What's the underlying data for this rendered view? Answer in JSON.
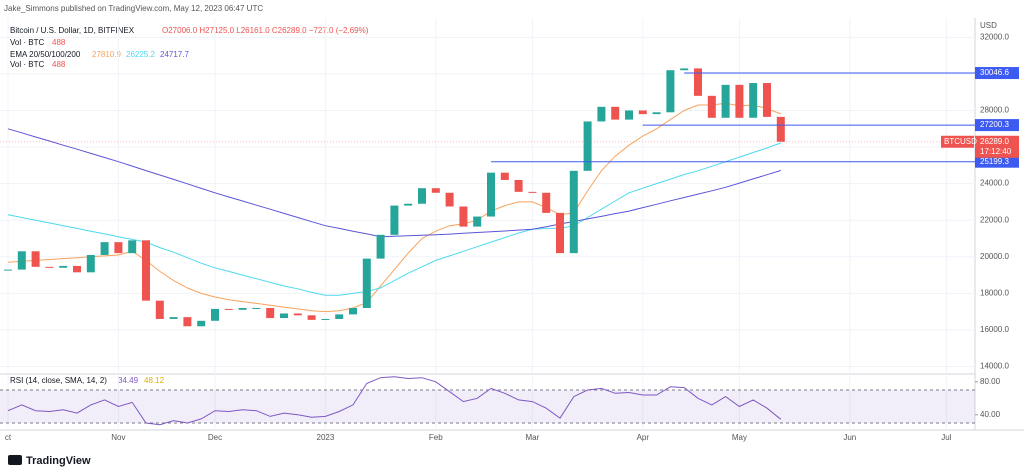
{
  "chart_data": [
    {
      "type": "candlestick",
      "author_note": "Jake_Simmons published on TradingView.com, May 12, 2023 06:47 UTC",
      "title": "Bitcoin / U.S. Dollar, 1D, BITFINEX",
      "ohlc": "O27006.0 H27125.0 L26161.0 C26289.0 −727.0 (−2.69%)",
      "volume_label": "Vol · BTC",
      "volume_value": "488",
      "ema_label": "EMA 20/50/100/200",
      "currency": "USD",
      "symbol": "BTCUSD",
      "countdown": "17:12:40",
      "last_price": {
        "value": 26289,
        "label": "26289.0"
      },
      "color": "#26a69a",
      "down_color": "#ef5350",
      "categories": [
        "ct",
        null,
        null,
        null,
        null,
        null,
        null,
        null,
        "Nov",
        null,
        null,
        null,
        null,
        null,
        null,
        "Dec",
        null,
        null,
        null,
        null,
        null,
        null,
        null,
        "2023",
        null,
        null,
        null,
        null,
        null,
        null,
        null,
        "Feb",
        null,
        null,
        null,
        null,
        null,
        null,
        "Mar",
        null,
        null,
        null,
        null,
        null,
        null,
        null,
        "Apr",
        null,
        null,
        null,
        null,
        null,
        null,
        "May",
        null,
        null,
        null,
        null,
        null,
        null,
        null,
        "Jun",
        null,
        null,
        null,
        null,
        null,
        null,
        "Jul",
        null,
        null
      ],
      "values": [
        19300,
        20300,
        19450,
        19400,
        19500,
        19150,
        20100,
        20800,
        20200,
        20900,
        17600,
        16600,
        16700,
        16200,
        16500,
        17150,
        17100,
        17200,
        17200,
        16650,
        16900,
        16800,
        16550,
        16600,
        16850,
        17200,
        19900,
        21200,
        22800,
        22900,
        23750,
        23500,
        22750,
        21650,
        22200,
        24600,
        24200,
        23550,
        23500,
        22400,
        20200,
        24700,
        27400,
        28200,
        27500,
        28000,
        27800,
        27900,
        30200,
        30300,
        28800,
        27600,
        29400,
        27600,
        29500,
        27650,
        26289,
        null,
        null,
        null,
        null,
        null,
        null,
        null,
        null,
        null,
        null,
        null,
        null,
        null,
        null
      ],
      "series": [
        {
          "name": "27810.9",
          "color": "#f7a35c",
          "values": [
            19700,
            19750,
            19800,
            19850,
            19900,
            19950,
            20000,
            20050,
            20100,
            20300,
            19800,
            19200,
            18700,
            18300,
            18000,
            17800,
            17650,
            17550,
            17450,
            17350,
            17250,
            17150,
            17050,
            17000,
            17050,
            17200,
            17500,
            18400,
            19300,
            20200,
            21000,
            21400,
            21700,
            21800,
            22000,
            22500,
            22800,
            23000,
            23000,
            22700,
            22300,
            22400,
            23600,
            24700,
            25500,
            26100,
            26600,
            27000,
            27500,
            28000,
            28300,
            28300,
            28400,
            28250,
            28300,
            28100,
            27810.9,
            null,
            null,
            null,
            null,
            null,
            null,
            null,
            null,
            null,
            null,
            null,
            null,
            null,
            null
          ]
        },
        {
          "name": "26225.2",
          "color": "#4dd9f0",
          "values": [
            22300,
            22150,
            22000,
            21850,
            21700,
            21550,
            21400,
            21250,
            21100,
            20950,
            20800,
            20500,
            20250,
            19950,
            19650,
            19400,
            19200,
            19000,
            18800,
            18600,
            18400,
            18250,
            18050,
            17900,
            17900,
            18000,
            18100,
            18300,
            18700,
            19100,
            19450,
            19800,
            20050,
            20300,
            20550,
            20800,
            21050,
            21300,
            21500,
            21550,
            21550,
            21700,
            22150,
            22600,
            23050,
            23500,
            23750,
            24000,
            24250,
            24500,
            24700,
            24950,
            25200,
            25450,
            25700,
            25950,
            26225.2,
            null,
            null,
            null,
            null,
            null,
            null,
            null,
            null,
            null,
            null,
            null,
            null,
            null,
            null
          ]
        },
        {
          "name": "24717.7",
          "color": "#5b55d6",
          "values": [
            27000,
            26780,
            26550,
            26330,
            26100,
            25880,
            25650,
            25430,
            25200,
            24960,
            24710,
            24470,
            24230,
            23990,
            23740,
            23500,
            23270,
            23050,
            22820,
            22600,
            22370,
            22150,
            21920,
            21700,
            21550,
            21400,
            21250,
            21100,
            21120,
            21150,
            21180,
            21200,
            21240,
            21290,
            21330,
            21370,
            21410,
            21460,
            21500,
            21640,
            21790,
            21930,
            22070,
            22210,
            22360,
            22500,
            22690,
            22870,
            23060,
            23240,
            23430,
            23610,
            23800,
            24030,
            24260,
            24490,
            24717.7,
            null,
            null,
            null,
            null,
            null,
            null,
            null,
            null,
            null,
            null,
            null,
            null,
            null,
            null
          ]
        }
      ],
      "levels": [
        {
          "value": 30046.6,
          "label": "30046.6"
        },
        {
          "value": 27200.3,
          "label": "27200.3"
        },
        {
          "value": 25199.3,
          "label": "25199.3"
        }
      ],
      "level_color": "#3d5af1",
      "ylim": [
        13700,
        32400
      ],
      "yticks": [
        {
          "value": 14000,
          "label": "14000.0"
        },
        {
          "value": 16000,
          "label": "16000.0"
        },
        {
          "value": 18000,
          "label": "18000.0"
        },
        {
          "value": 20000,
          "label": "20000.0"
        },
        {
          "value": 22000,
          "label": "22000.0"
        },
        {
          "value": 24000,
          "label": "24000.0"
        },
        {
          "value": 26000,
          "label": "26000.0"
        },
        {
          "value": 28000,
          "label": "28000.0"
        },
        {
          "value": 30000,
          "label": "30000.0"
        },
        {
          "value": 32000,
          "label": "32000.0"
        }
      ],
      "grid": true
    },
    {
      "type": "line",
      "title": "RSI (14, close, SMA, 14, 2)",
      "readings": [
        "34.49",
        "48.12"
      ],
      "color": "#7e57c2",
      "band": [
        30,
        70
      ],
      "values": [
        45,
        52,
        45,
        44,
        46,
        42,
        52,
        58,
        50,
        55,
        30,
        28,
        33,
        30,
        35,
        45,
        44,
        46,
        45,
        38,
        42,
        40,
        37,
        38,
        44,
        52,
        78,
        85,
        86,
        84,
        85,
        80,
        68,
        56,
        60,
        72,
        66,
        58,
        56,
        48,
        36,
        62,
        70,
        72,
        66,
        67,
        64,
        64,
        74,
        73,
        60,
        52,
        62,
        50,
        58,
        48,
        34.49,
        null,
        null,
        null,
        null,
        null,
        null,
        null,
        null,
        null,
        null,
        null,
        null,
        null,
        null
      ],
      "ylim": [
        24,
        87
      ],
      "yticks": [
        {
          "value": 40,
          "label": "40.00"
        },
        {
          "value": 80,
          "label": "80.00"
        }
      ]
    },
    {
      "footer": "TradingView"
    }
  ]
}
